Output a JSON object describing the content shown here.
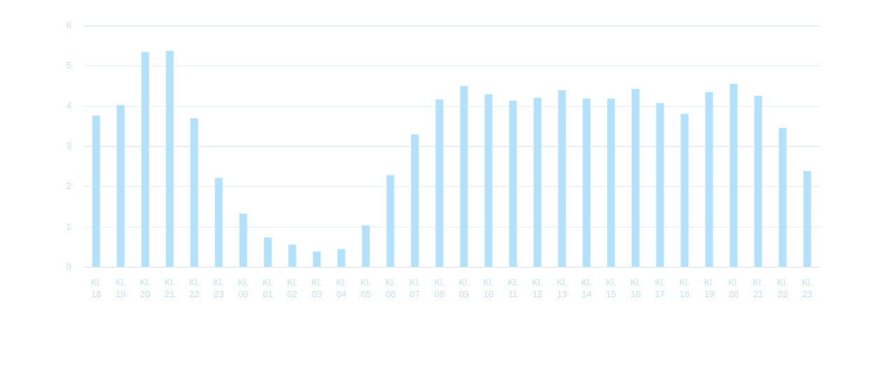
{
  "chart_data": {
    "type": "bar",
    "categories": [
      "Kl. 18",
      "Kl. 19",
      "Kl. 20",
      "Kl. 21",
      "Kl. 22",
      "Kl. 23",
      "Kl. 00",
      "Kl. 01",
      "Kl. 02",
      "Kl. 03",
      "Kl. 04",
      "Kl. 05",
      "Kl. 06",
      "Kl. 07",
      "Kl. 08",
      "Kl. 09",
      "Kl. 10",
      "Kl. 11",
      "Kl. 12",
      "Kl. 13",
      "Kl. 14",
      "Kl. 15",
      "Kl. 16",
      "Kl. 17",
      "Kl. 18",
      "Kl. 19",
      "Kl. 20",
      "Kl. 21",
      "Kl. 22",
      "Kl. 23"
    ],
    "values": [
      3.77,
      4.03,
      5.35,
      5.38,
      3.7,
      2.22,
      1.33,
      0.74,
      0.56,
      0.39,
      0.45,
      1.04,
      2.29,
      3.3,
      4.17,
      4.5,
      4.3,
      4.14,
      4.21,
      4.4,
      4.19,
      4.19,
      4.43,
      4.08,
      3.81,
      4.35,
      4.56,
      4.26,
      3.46,
      2.39
    ],
    "color": "#b3e0fb",
    "ylim": [
      0,
      6
    ],
    "yticks": [
      0,
      1,
      2,
      3,
      4,
      5,
      6
    ],
    "grid": true
  }
}
